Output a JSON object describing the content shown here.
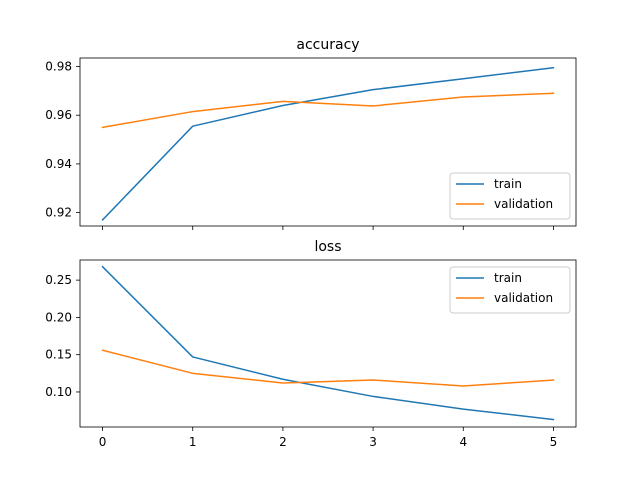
{
  "colors": {
    "train": "#1f77b4",
    "validation": "#ff7f0e"
  },
  "chart_data": [
    {
      "type": "line",
      "title": "accuracy",
      "xlabel": "",
      "ylabel": "",
      "x": [
        0,
        1,
        2,
        3,
        4,
        5
      ],
      "xlim": [
        -0.25,
        5.25
      ],
      "ylim": [
        0.9145,
        0.9835
      ],
      "yticks": [
        0.92,
        0.94,
        0.96,
        0.98
      ],
      "ytick_labels": [
        "0.92",
        "0.94",
        "0.96",
        "0.98"
      ],
      "xtick_labels": [],
      "legend_position": "lower-right",
      "series": [
        {
          "name": "train",
          "color": "#1f77b4",
          "values": [
            0.917,
            0.9555,
            0.964,
            0.9705,
            0.975,
            0.9795
          ]
        },
        {
          "name": "validation",
          "color": "#ff7f0e",
          "values": [
            0.955,
            0.9615,
            0.9657,
            0.9638,
            0.9675,
            0.969
          ]
        }
      ]
    },
    {
      "type": "line",
      "title": "loss",
      "xlabel": "",
      "ylabel": "",
      "x": [
        0,
        1,
        2,
        3,
        4,
        5
      ],
      "xlim": [
        -0.25,
        5.25
      ],
      "ylim": [
        0.053,
        0.277
      ],
      "yticks": [
        0.1,
        0.15,
        0.2,
        0.25
      ],
      "ytick_labels": [
        "0.10",
        "0.15",
        "0.20",
        "0.25"
      ],
      "xtick_labels": [
        "0",
        "1",
        "2",
        "3",
        "4",
        "5"
      ],
      "legend_position": "upper-right",
      "series": [
        {
          "name": "train",
          "color": "#1f77b4",
          "values": [
            0.268,
            0.147,
            0.117,
            0.094,
            0.077,
            0.063
          ]
        },
        {
          "name": "validation",
          "color": "#ff7f0e",
          "values": [
            0.156,
            0.125,
            0.112,
            0.116,
            0.108,
            0.116
          ]
        }
      ]
    }
  ]
}
